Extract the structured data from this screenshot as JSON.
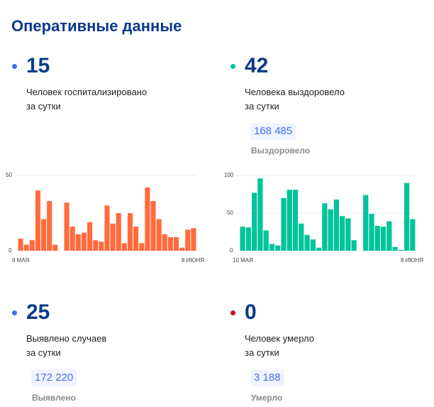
{
  "header": {
    "title": "Оперативные данные"
  },
  "stats": {
    "hospitalized": {
      "value": "15",
      "line1": "Человек госпитализировано",
      "line2": "за сутки",
      "dot_color": "#3d6cf0"
    },
    "recovered": {
      "value": "42",
      "line1": "Человека выздоровело",
      "line2": "за сутки",
      "total": "168 485",
      "total_label": "Выздоровело",
      "dot_color": "#00c49a"
    },
    "cases": {
      "value": "25",
      "line1": "Выявлено случаев",
      "line2": "за сутки",
      "total": "172 220",
      "total_label": "Выявлено",
      "dot_color": "#3d6cf0"
    },
    "deaths": {
      "value": "0",
      "line1": "Человек умерло",
      "line2": "за сутки",
      "total": "3 188",
      "total_label": "Умерло",
      "dot_color": "#c8102e"
    }
  },
  "chart_data": [
    {
      "type": "bar",
      "name": "hospitalized",
      "color": "#ff6b3d",
      "ylim": [
        0,
        50
      ],
      "yticks": [
        "0",
        "50"
      ],
      "xlabels": [
        "9 МАЯ",
        "8 ИЮНЯ"
      ],
      "values": [
        8,
        4,
        7,
        40,
        21,
        33,
        4,
        0,
        32,
        16,
        11,
        12,
        19,
        7,
        6,
        30,
        18,
        25,
        5,
        25,
        16,
        5,
        42,
        33,
        21,
        11,
        9,
        9,
        2,
        14,
        15
      ]
    },
    {
      "type": "bar",
      "name": "recovered",
      "color": "#00c49a",
      "ylim": [
        0,
        100
      ],
      "yticks": [
        "0",
        "50",
        "100"
      ],
      "xlabels": [
        "10 МАЯ",
        "8 ИЮНЯ"
      ],
      "values": [
        32,
        31,
        77,
        96,
        27,
        9,
        7,
        70,
        81,
        81,
        36,
        21,
        15,
        4,
        63,
        55,
        68,
        46,
        43,
        14,
        0,
        74,
        49,
        33,
        32,
        39,
        5,
        1,
        90,
        42
      ]
    }
  ]
}
